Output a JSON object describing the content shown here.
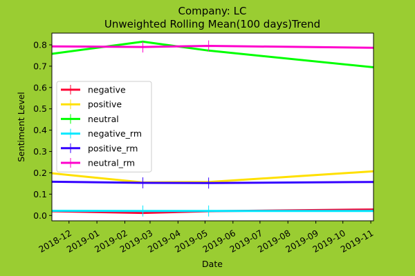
{
  "chart_data": {
    "type": "line",
    "title_line1": "Company: LC",
    "title_line2": "Unweighted Rolling Mean(100 days)Trend",
    "xlabel": "Date",
    "ylabel": "Sentiment Level",
    "x_range": [
      "2018-11-12",
      "2019-11-04"
    ],
    "ylim": [
      -0.025,
      0.855
    ],
    "x_ticks": [
      {
        "date": "2018-12-01",
        "label": "2018-12"
      },
      {
        "date": "2019-01-01",
        "label": "2019-01"
      },
      {
        "date": "2019-02-01",
        "label": "2019-02"
      },
      {
        "date": "2019-03-01",
        "label": "2019-03"
      },
      {
        "date": "2019-04-01",
        "label": "2019-04"
      },
      {
        "date": "2019-05-01",
        "label": "2019-05"
      },
      {
        "date": "2019-06-01",
        "label": "2019-06"
      },
      {
        "date": "2019-07-01",
        "label": "2019-07"
      },
      {
        "date": "2019-08-01",
        "label": "2019-08"
      },
      {
        "date": "2019-09-01",
        "label": "2019-09"
      },
      {
        "date": "2019-10-01",
        "label": "2019-10"
      },
      {
        "date": "2019-11-01",
        "label": "2019-11"
      }
    ],
    "y_ticks": [
      0.0,
      0.1,
      0.2,
      0.3,
      0.4,
      0.5,
      0.6,
      0.7,
      0.8
    ],
    "legend_position": "center-left",
    "series": [
      {
        "name": "negative",
        "color": "#FF0033",
        "points": [
          [
            "2018-11-12",
            0.02
          ],
          [
            "2019-02-21",
            0.012
          ],
          [
            "2019-05-05",
            0.02
          ],
          [
            "2019-11-04",
            0.028
          ]
        ]
      },
      {
        "name": "positive",
        "color": "#FFE000",
        "points": [
          [
            "2018-11-12",
            0.198
          ],
          [
            "2019-02-21",
            0.155
          ],
          [
            "2019-05-05",
            0.157
          ],
          [
            "2019-11-04",
            0.207
          ]
        ]
      },
      {
        "name": "neutral",
        "color": "#00FF00",
        "points": [
          [
            "2018-11-12",
            0.758
          ],
          [
            "2019-02-21",
            0.815
          ],
          [
            "2019-05-05",
            0.773
          ],
          [
            "2019-11-04",
            0.695
          ]
        ]
      },
      {
        "name": "negative_rm",
        "color": "#00E8FF",
        "points": [
          [
            "2018-11-12",
            0.022
          ],
          [
            "2019-02-21",
            0.021
          ],
          [
            "2019-05-05",
            0.021
          ],
          [
            "2019-11-04",
            0.021
          ]
        ]
      },
      {
        "name": "positive_rm",
        "color": "#3300FF",
        "points": [
          [
            "2018-11-12",
            0.158
          ],
          [
            "2019-02-21",
            0.153
          ],
          [
            "2019-05-05",
            0.152
          ],
          [
            "2019-11-04",
            0.157
          ]
        ]
      },
      {
        "name": "neutral_rm",
        "color": "#FF00CC",
        "points": [
          [
            "2018-11-12",
            0.793
          ],
          [
            "2019-02-21",
            0.79
          ],
          [
            "2019-05-05",
            0.795
          ],
          [
            "2019-11-04",
            0.786
          ]
        ]
      }
    ],
    "markers": [
      {
        "series": "negative_rm",
        "date": "2019-02-21",
        "value": 0.021
      },
      {
        "series": "negative_rm",
        "date": "2019-05-05",
        "value": 0.021
      },
      {
        "series": "positive_rm",
        "date": "2019-02-21",
        "value": 0.153
      },
      {
        "series": "positive_rm",
        "date": "2019-05-05",
        "value": 0.152
      },
      {
        "series": "neutral_rm",
        "date": "2019-02-21",
        "value": 0.79
      },
      {
        "series": "neutral_rm",
        "date": "2019-05-05",
        "value": 0.795
      }
    ]
  }
}
